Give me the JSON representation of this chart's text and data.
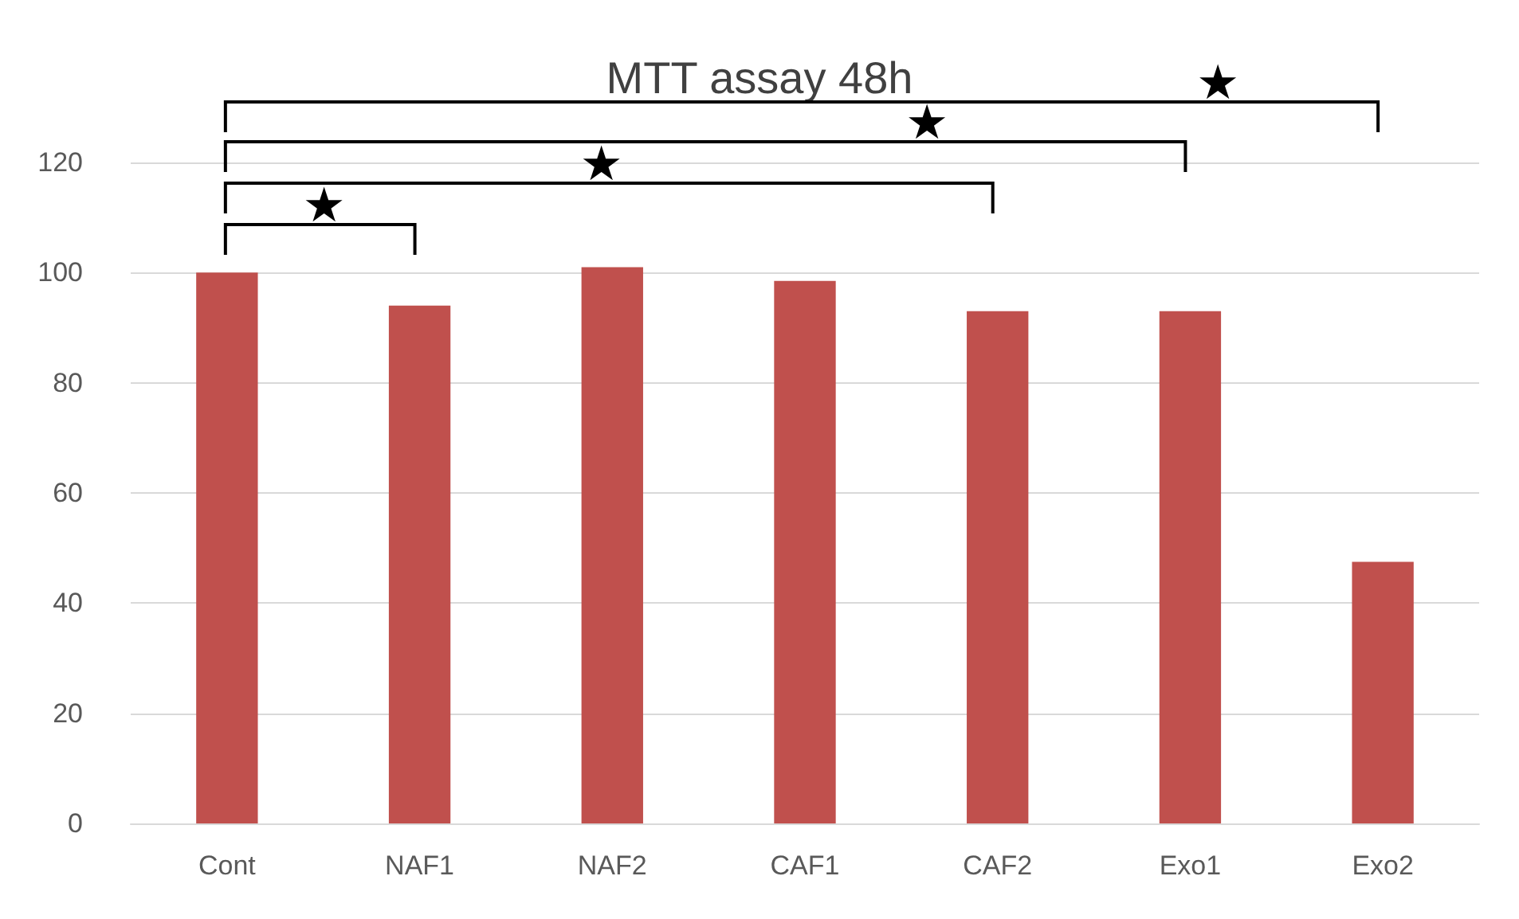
{
  "chart_data": {
    "type": "bar",
    "title": "MTT assay 48h",
    "categories": [
      "Cont",
      "NAF1",
      "NAF2",
      "CAF1",
      "CAF2",
      "Exo1",
      "Exo2"
    ],
    "values": [
      100,
      94,
      101,
      98.5,
      93,
      93,
      47.5
    ],
    "color": "#c0504d",
    "ylim": [
      0,
      120
    ],
    "yticks": [
      0,
      20,
      40,
      60,
      80,
      100,
      120
    ],
    "grid": "y",
    "annotations": [
      "★",
      "★",
      "★",
      "★"
    ]
  }
}
